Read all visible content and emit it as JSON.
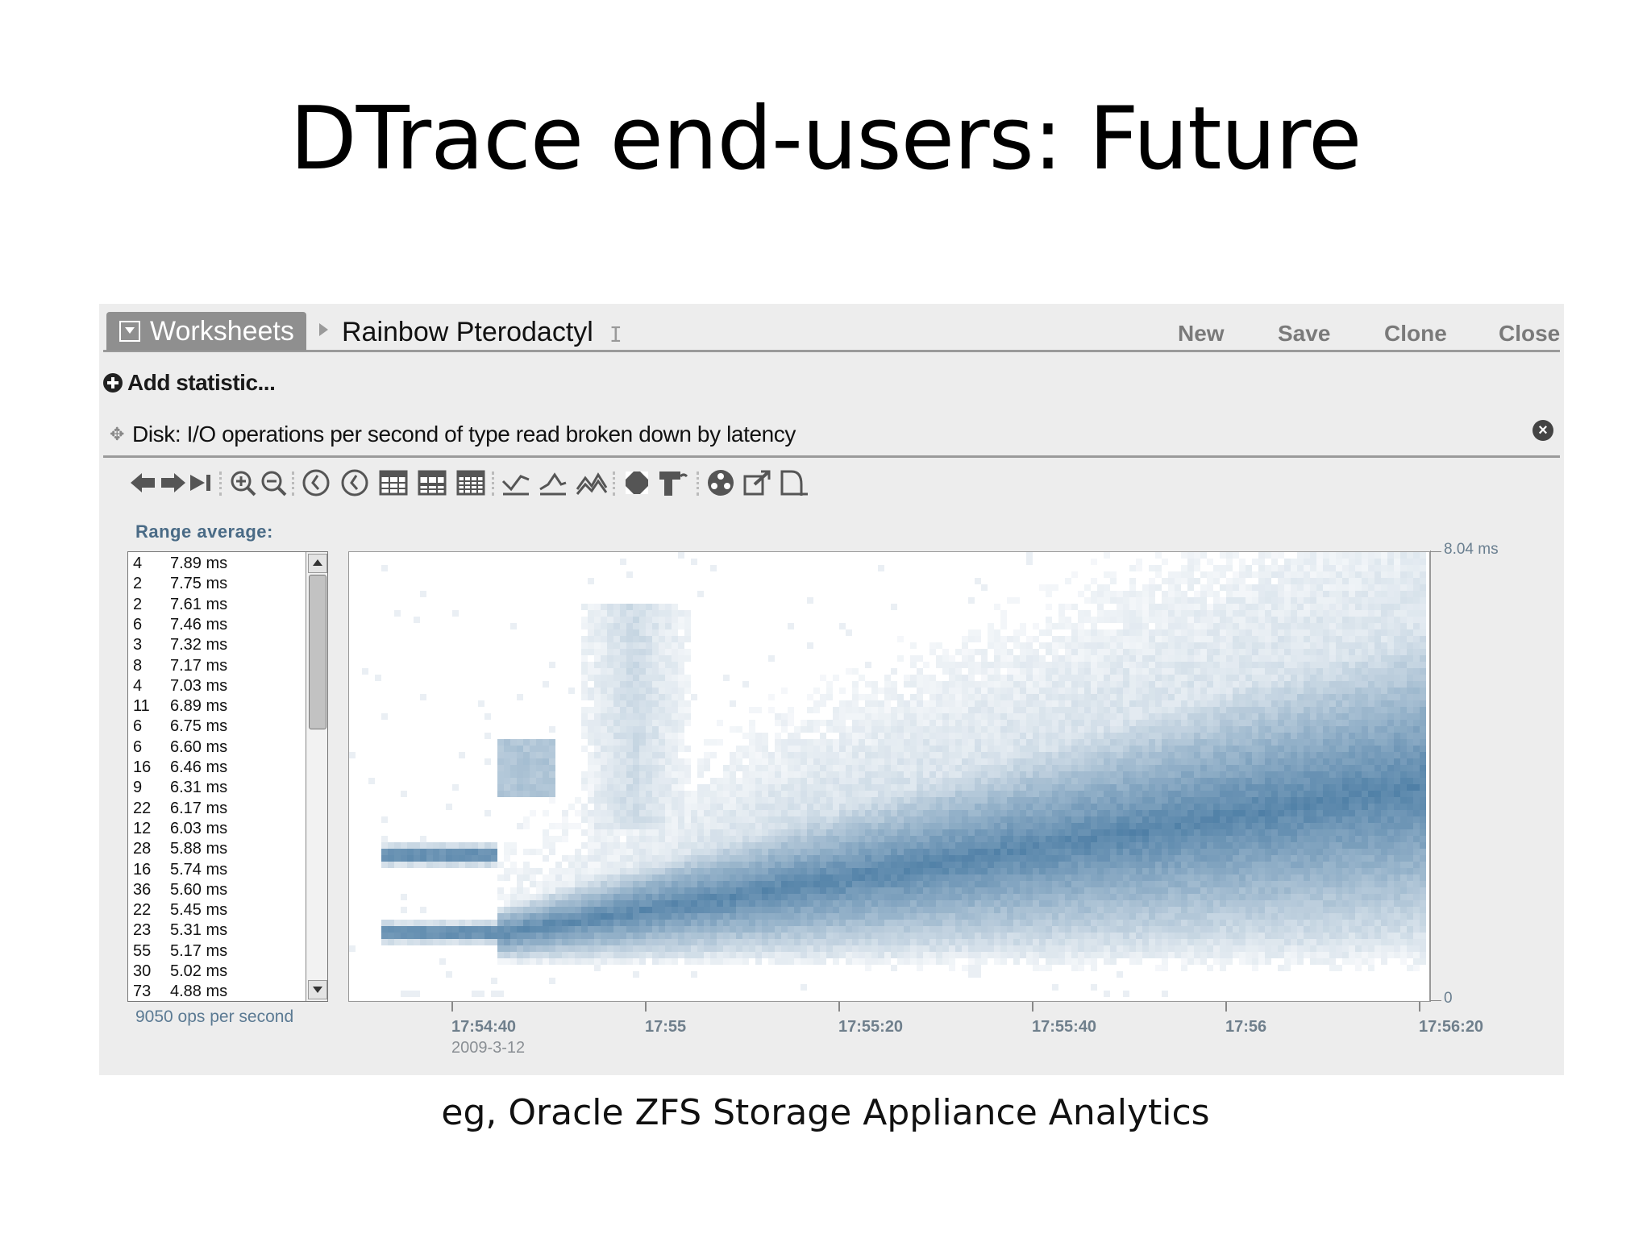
{
  "slide": {
    "title": "DTrace end-users: Future",
    "caption": "eg, Oracle ZFS Storage Appliance Analytics"
  },
  "header": {
    "tab_label": "Worksheets",
    "worksheet_name": "Rainbow Pterodactyl",
    "actions": {
      "new": "New",
      "save": "Save",
      "clone": "Clone",
      "close": "Close"
    }
  },
  "add_statistic": "Add statistic...",
  "statistic": {
    "title": "Disk: I/O operations per second of type read broken down by latency"
  },
  "toolbar": {
    "icons": [
      "arrow-left-icon",
      "arrow-right-icon",
      "skip-end-icon",
      "zoom-in-icon",
      "zoom-out-icon",
      "clock-back-icon",
      "clock-forward-icon",
      "table-icon",
      "table-alt-icon",
      "table-full-icon",
      "line-chart-icon",
      "line-chart-alt-icon",
      "mountain-chart-icon",
      "fit-icon",
      "drill-icon",
      "color-wheel-icon",
      "export-icon",
      "save-dataset-icon"
    ]
  },
  "range": {
    "label": "Range average:",
    "items": [
      {
        "count": "4",
        "value": "7.89 ms"
      },
      {
        "count": "2",
        "value": "7.75 ms"
      },
      {
        "count": "2",
        "value": "7.61 ms"
      },
      {
        "count": "6",
        "value": "7.46 ms"
      },
      {
        "count": "3",
        "value": "7.32 ms"
      },
      {
        "count": "8",
        "value": "7.17 ms"
      },
      {
        "count": "4",
        "value": "7.03 ms"
      },
      {
        "count": "11",
        "value": "6.89 ms"
      },
      {
        "count": "6",
        "value": "6.75 ms"
      },
      {
        "count": "6",
        "value": "6.60 ms"
      },
      {
        "count": "16",
        "value": "6.46 ms"
      },
      {
        "count": "9",
        "value": "6.31 ms"
      },
      {
        "count": "22",
        "value": "6.17 ms"
      },
      {
        "count": "12",
        "value": "6.03 ms"
      },
      {
        "count": "28",
        "value": "5.88 ms"
      },
      {
        "count": "16",
        "value": "5.74 ms"
      },
      {
        "count": "36",
        "value": "5.60 ms"
      },
      {
        "count": "22",
        "value": "5.45 ms"
      },
      {
        "count": "23",
        "value": "5.31 ms"
      },
      {
        "count": "55",
        "value": "5.17 ms"
      },
      {
        "count": "30",
        "value": "5.02 ms"
      },
      {
        "count": "73",
        "value": "4.88 ms"
      }
    ],
    "ops_label": "9050 ops per second"
  },
  "chart_data": {
    "type": "heatmap",
    "y_max_label": "8.04 ms",
    "y_min_label": "0",
    "ylim": [
      0,
      8.04
    ],
    "x_ticks": [
      "17:54:40",
      "17:55",
      "17:55:20",
      "17:55:40",
      "17:56",
      "17:56:20"
    ],
    "x_date": "2009-3-12",
    "color": "#4f7fa6"
  }
}
